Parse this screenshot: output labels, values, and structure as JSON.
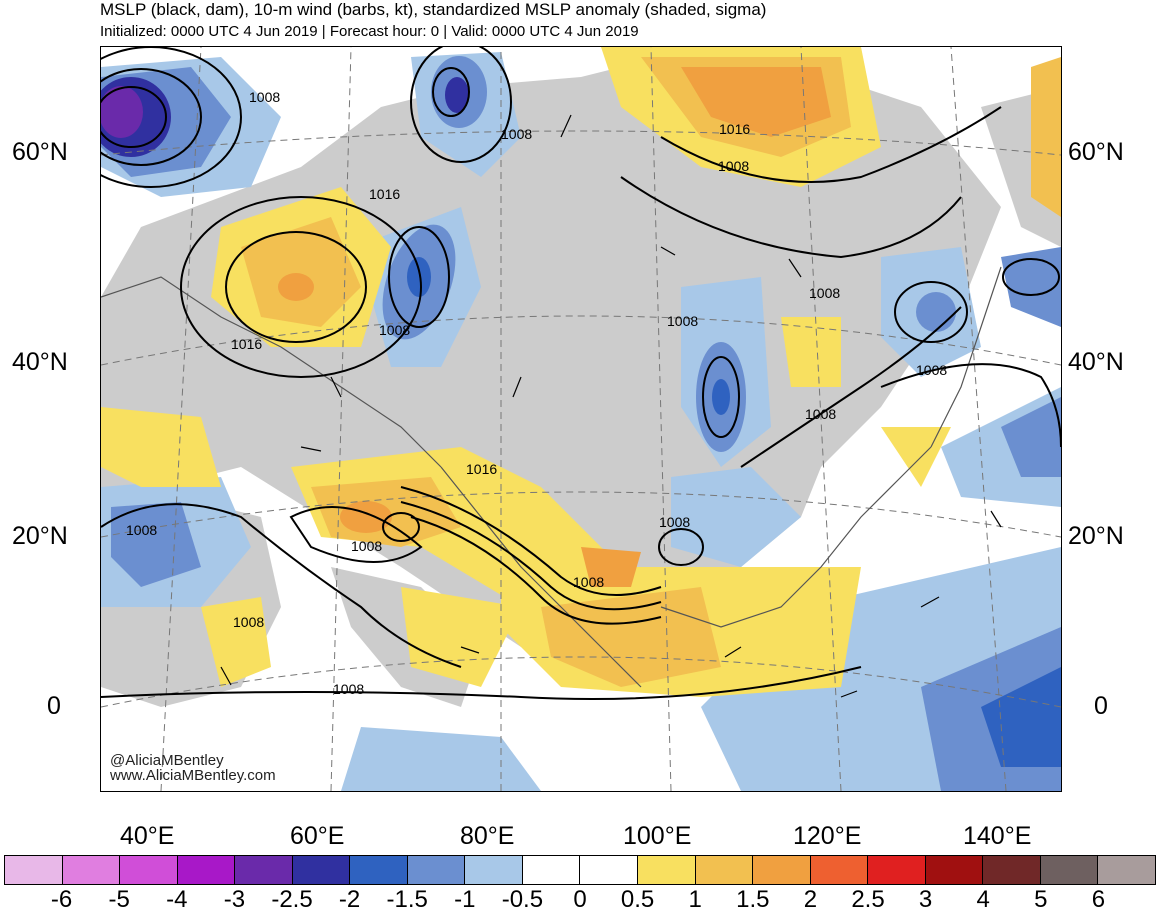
{
  "header": {
    "title": "MSLP (black, dam), 10-m wind (barbs, kt), standardized MSLP anomaly (shaded, sigma)",
    "subtitle": "Initialized: 0000 UTC 4 Jun 2019 | Forecast hour: 0 | Valid: 0000 UTC 4 Jun 2019"
  },
  "map": {
    "lat_labels": [
      "60°N",
      "40°N",
      "20°N",
      "0"
    ],
    "lon_labels": [
      "40°E",
      "60°E",
      "80°E",
      "100°E",
      "120°E",
      "140°E"
    ],
    "isobar_labels": [
      "1008",
      "1008",
      "1016",
      "1016",
      "1008",
      "1008",
      "1016",
      "1008",
      "1008",
      "1008",
      "1008",
      "1008",
      "1008",
      "1008",
      "1016",
      "1008",
      "1008",
      "1008"
    ],
    "credit": [
      "@AliciaMBentley",
      "www.AliciaMBentley.com"
    ]
  },
  "colorbar": {
    "labels": [
      "-6",
      "-5",
      "-4",
      "-3",
      "-2.5",
      "-2",
      "-1.5",
      "-1",
      "-0.5",
      "0",
      "0.5",
      "1",
      "1.5",
      "2",
      "2.5",
      "3",
      "4",
      "5",
      "6"
    ],
    "colors": [
      "#e8b8e8",
      "#e07ee0",
      "#d04ed8",
      "#a818c8",
      "#6a2aaa",
      "#3030a0",
      "#2f62c0",
      "#6b8fd0",
      "#a8c8e8",
      "#ffffff",
      "#ffffff",
      "#f8e060",
      "#f2c050",
      "#f0a040",
      "#ee6030",
      "#e02020",
      "#a01010",
      "#702828",
      "#6e6060",
      "#a89c9c"
    ]
  }
}
